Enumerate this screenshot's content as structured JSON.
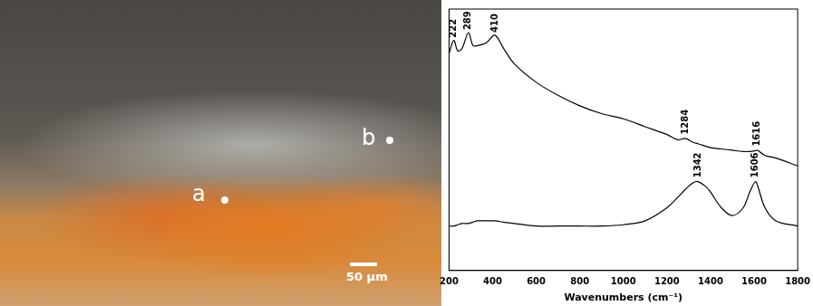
{
  "photo": {
    "labels": [
      "a",
      "b"
    ],
    "scale_bar": "50 µm"
  },
  "chart_data": {
    "type": "line",
    "x_label": "Wavenumbers (cm⁻¹)",
    "x": [
      200,
      222,
      240,
      260,
      289,
      310,
      330,
      370,
      410,
      450,
      500,
      600,
      700,
      800,
      900,
      1000,
      1100,
      1200,
      1250,
      1284,
      1320,
      1342,
      1380,
      1400,
      1450,
      1500,
      1550,
      1580,
      1606,
      1616,
      1650,
      1700,
      1800
    ],
    "series": [
      {
        "color": "#000000",
        "values": [
          83,
          88,
          84,
          85,
          91,
          86,
          86,
          87,
          90,
          85,
          79,
          72,
          67,
          63,
          60,
          58,
          55,
          52,
          50,
          50.5,
          49,
          48.5,
          47.5,
          47,
          46.5,
          46,
          45.5,
          45.5,
          45.8,
          46,
          44,
          43,
          40
        ]
      },
      {
        "color": "#000000",
        "values": [
          17,
          17,
          17.5,
          18,
          18,
          18.5,
          19,
          19,
          19,
          18.5,
          18,
          17,
          17,
          17,
          17,
          17.5,
          19,
          24,
          28,
          31,
          33.5,
          34,
          32,
          30,
          24,
          21,
          24,
          30,
          34,
          32.5,
          24,
          19,
          17
        ]
      }
    ],
    "annotations": [
      {
        "text": "222",
        "x": 222,
        "y": 89
      },
      {
        "text": "289",
        "x": 289,
        "y": 92
      },
      {
        "text": "410",
        "x": 410,
        "y": 91
      },
      {
        "text": "1284",
        "x": 1284,
        "y": 52
      },
      {
        "text": "1616",
        "x": 1616,
        "y": 47.5
      },
      {
        "text": "1342",
        "x": 1342,
        "y": 35.5
      },
      {
        "text": "1606",
        "x": 1606,
        "y": 35.5
      }
    ],
    "xlim": [
      200,
      1800
    ],
    "xticks": [
      200,
      400,
      600,
      800,
      1000,
      1200,
      1400,
      1600,
      1800
    ],
    "ylim": [
      0,
      100
    ],
    "yticks": [],
    "tick_labels": "x",
    "grid": false
  }
}
